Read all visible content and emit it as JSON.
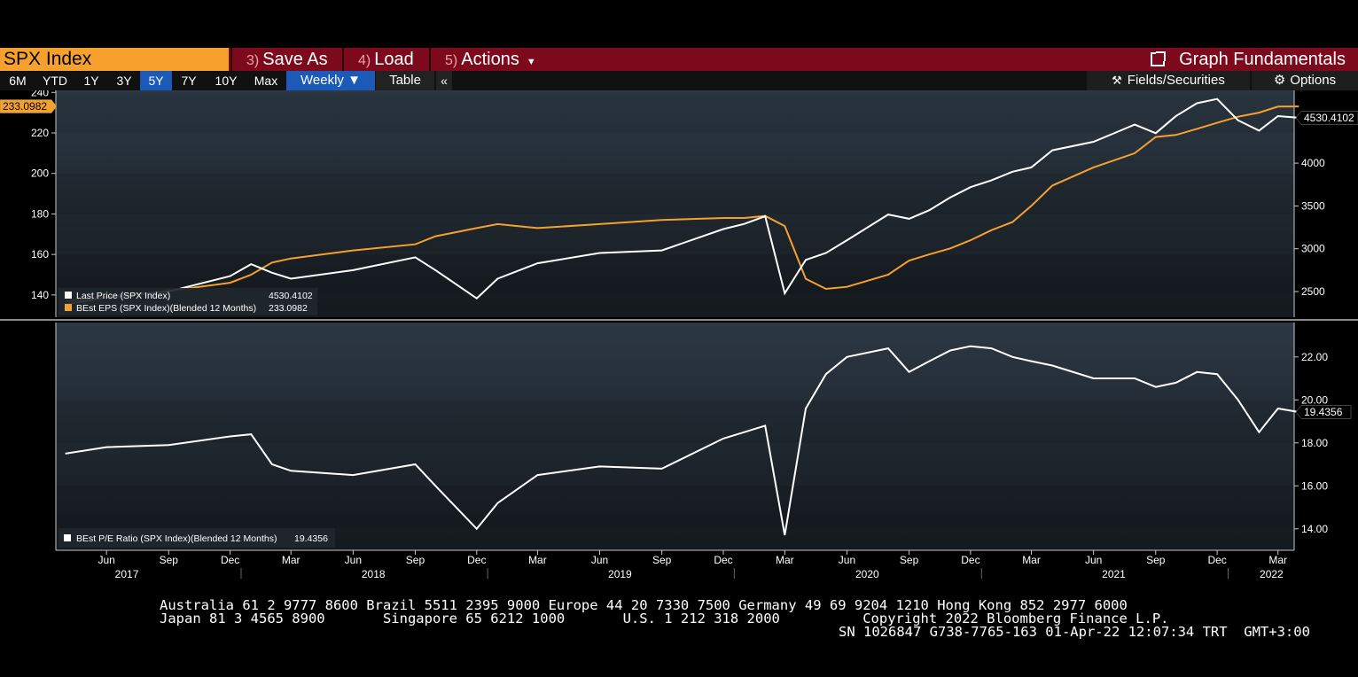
{
  "toolbar": {
    "security": "SPX Index",
    "save_num": "3)",
    "save_label": "Save As",
    "load_num": "4)",
    "load_label": "Load",
    "actions_num": "5)",
    "actions_label": "Actions",
    "graph_label": "Graph Fundamentals"
  },
  "ranges": [
    "6M",
    "YTD",
    "1Y",
    "3Y",
    "5Y",
    "7Y",
    "10Y",
    "Max"
  ],
  "range_selected": "5Y",
  "periodicity": "Weekly ▼",
  "table_label": "Table",
  "collapse_label": "«",
  "fields_label": "Fields/Securities",
  "options_label": "Options",
  "colors": {
    "price": "#ffffff",
    "eps": "#f6a02d",
    "pe": "#ffffff",
    "accent": "#7d0a1c"
  },
  "chart_data": [
    {
      "type": "line",
      "x_labels": [
        "Jun",
        "Sep",
        "Dec",
        "Mar",
        "Jun",
        "Sep",
        "Dec",
        "Mar",
        "Jun",
        "Sep",
        "Dec",
        "Mar",
        "Jun",
        "Sep",
        "Dec",
        "Mar",
        "Jun",
        "Sep",
        "Dec",
        "Mar",
        "Jun",
        "Sep",
        "Dec",
        "Mar"
      ],
      "year_labels": [
        "2017",
        "2018",
        "2019",
        "2020",
        "2021",
        "2022"
      ],
      "x": [
        "2017-04",
        "2017-06",
        "2017-09",
        "2017-12",
        "2018-01",
        "2018-02",
        "2018-03",
        "2018-06",
        "2018-09",
        "2018-10",
        "2018-12",
        "2019-01",
        "2019-03",
        "2019-06",
        "2019-09",
        "2019-12",
        "2020-01",
        "2020-02",
        "2020-03",
        "2020-04",
        "2020-05",
        "2020-06",
        "2020-08",
        "2020-09",
        "2020-10",
        "2020-11",
        "2020-12",
        "2021-01",
        "2021-02",
        "2021-03",
        "2021-04",
        "2021-06",
        "2021-08",
        "2021-09",
        "2021-10",
        "2021-11",
        "2021-12",
        "2022-01",
        "2022-02",
        "2022-03",
        "2022-04"
      ],
      "left_axis": {
        "ticks": [
          140,
          160,
          180,
          200,
          220,
          240
        ],
        "range": [
          129,
          241
        ]
      },
      "right_axis": {
        "ticks": [
          2500,
          3000,
          3500,
          4000
        ],
        "range": [
          2200,
          4850
        ]
      },
      "series": [
        {
          "name": "Last Price (SPX Index)",
          "last": "4530.4102",
          "axis": "right",
          "color": "#ffffff",
          "values": [
            2350,
            2430,
            2500,
            2680,
            2820,
            2720,
            2650,
            2750,
            2900,
            2750,
            2420,
            2650,
            2830,
            2950,
            2980,
            3230,
            3290,
            3380,
            2480,
            2870,
            2950,
            3100,
            3400,
            3350,
            3450,
            3600,
            3720,
            3800,
            3900,
            3950,
            4150,
            4250,
            4450,
            4350,
            4550,
            4700,
            4750,
            4500,
            4380,
            4550,
            4530
          ]
        },
        {
          "name": "BEst EPS (SPX Index)(Blended 12 Months)",
          "last": "233.0982",
          "axis": "left",
          "color": "#f6a02d",
          "values": [
            137,
            139,
            142,
            146,
            150,
            156,
            158,
            162,
            165,
            169,
            173,
            175,
            173,
            175,
            177,
            178,
            178,
            179,
            174,
            148,
            143,
            144,
            150,
            157,
            160,
            163,
            167,
            172,
            176,
            184,
            194,
            203,
            210,
            218,
            219,
            222,
            225,
            228,
            230,
            233,
            233.0982
          ]
        }
      ]
    },
    {
      "type": "line",
      "axis": {
        "ticks": [
          14,
          16,
          18,
          20,
          22
        ],
        "tick_labels": [
          "14.00",
          "16.00",
          "18.00",
          "20.00",
          "22.00"
        ],
        "range": [
          13.0,
          23.6
        ]
      },
      "series": [
        {
          "name": "BEst P/E Ratio (SPX Index)(Blended 12 Months)",
          "last": "19.4356",
          "color": "#ffffff",
          "values": [
            17.5,
            17.8,
            17.9,
            18.3,
            18.4,
            17.0,
            16.7,
            16.5,
            17.0,
            16.0,
            14.0,
            15.2,
            16.5,
            16.9,
            16.8,
            18.2,
            18.5,
            18.8,
            13.7,
            19.6,
            21.2,
            22.0,
            22.4,
            21.3,
            21.8,
            22.3,
            22.5,
            22.4,
            22.0,
            21.8,
            21.6,
            21.0,
            21.0,
            20.6,
            20.8,
            21.3,
            21.2,
            20.0,
            18.5,
            19.6,
            19.4356
          ]
        }
      ]
    }
  ],
  "footer": {
    "line1": "Australia 61 2 9777 8600 Brazil 5511 2395 9000 Europe 44 20 7330 7500 Germany 49 69 9204 1210 Hong Kong 852 2977 6000",
    "line2": "Japan 81 3 4565 8900       Singapore 65 6212 1000       U.S. 1 212 318 2000          Copyright 2022 Bloomberg Finance L.P.",
    "line3": "SN 1026847 G738-7765-163 01-Apr-22 12:07:34 TRT  GMT+3:00"
  }
}
